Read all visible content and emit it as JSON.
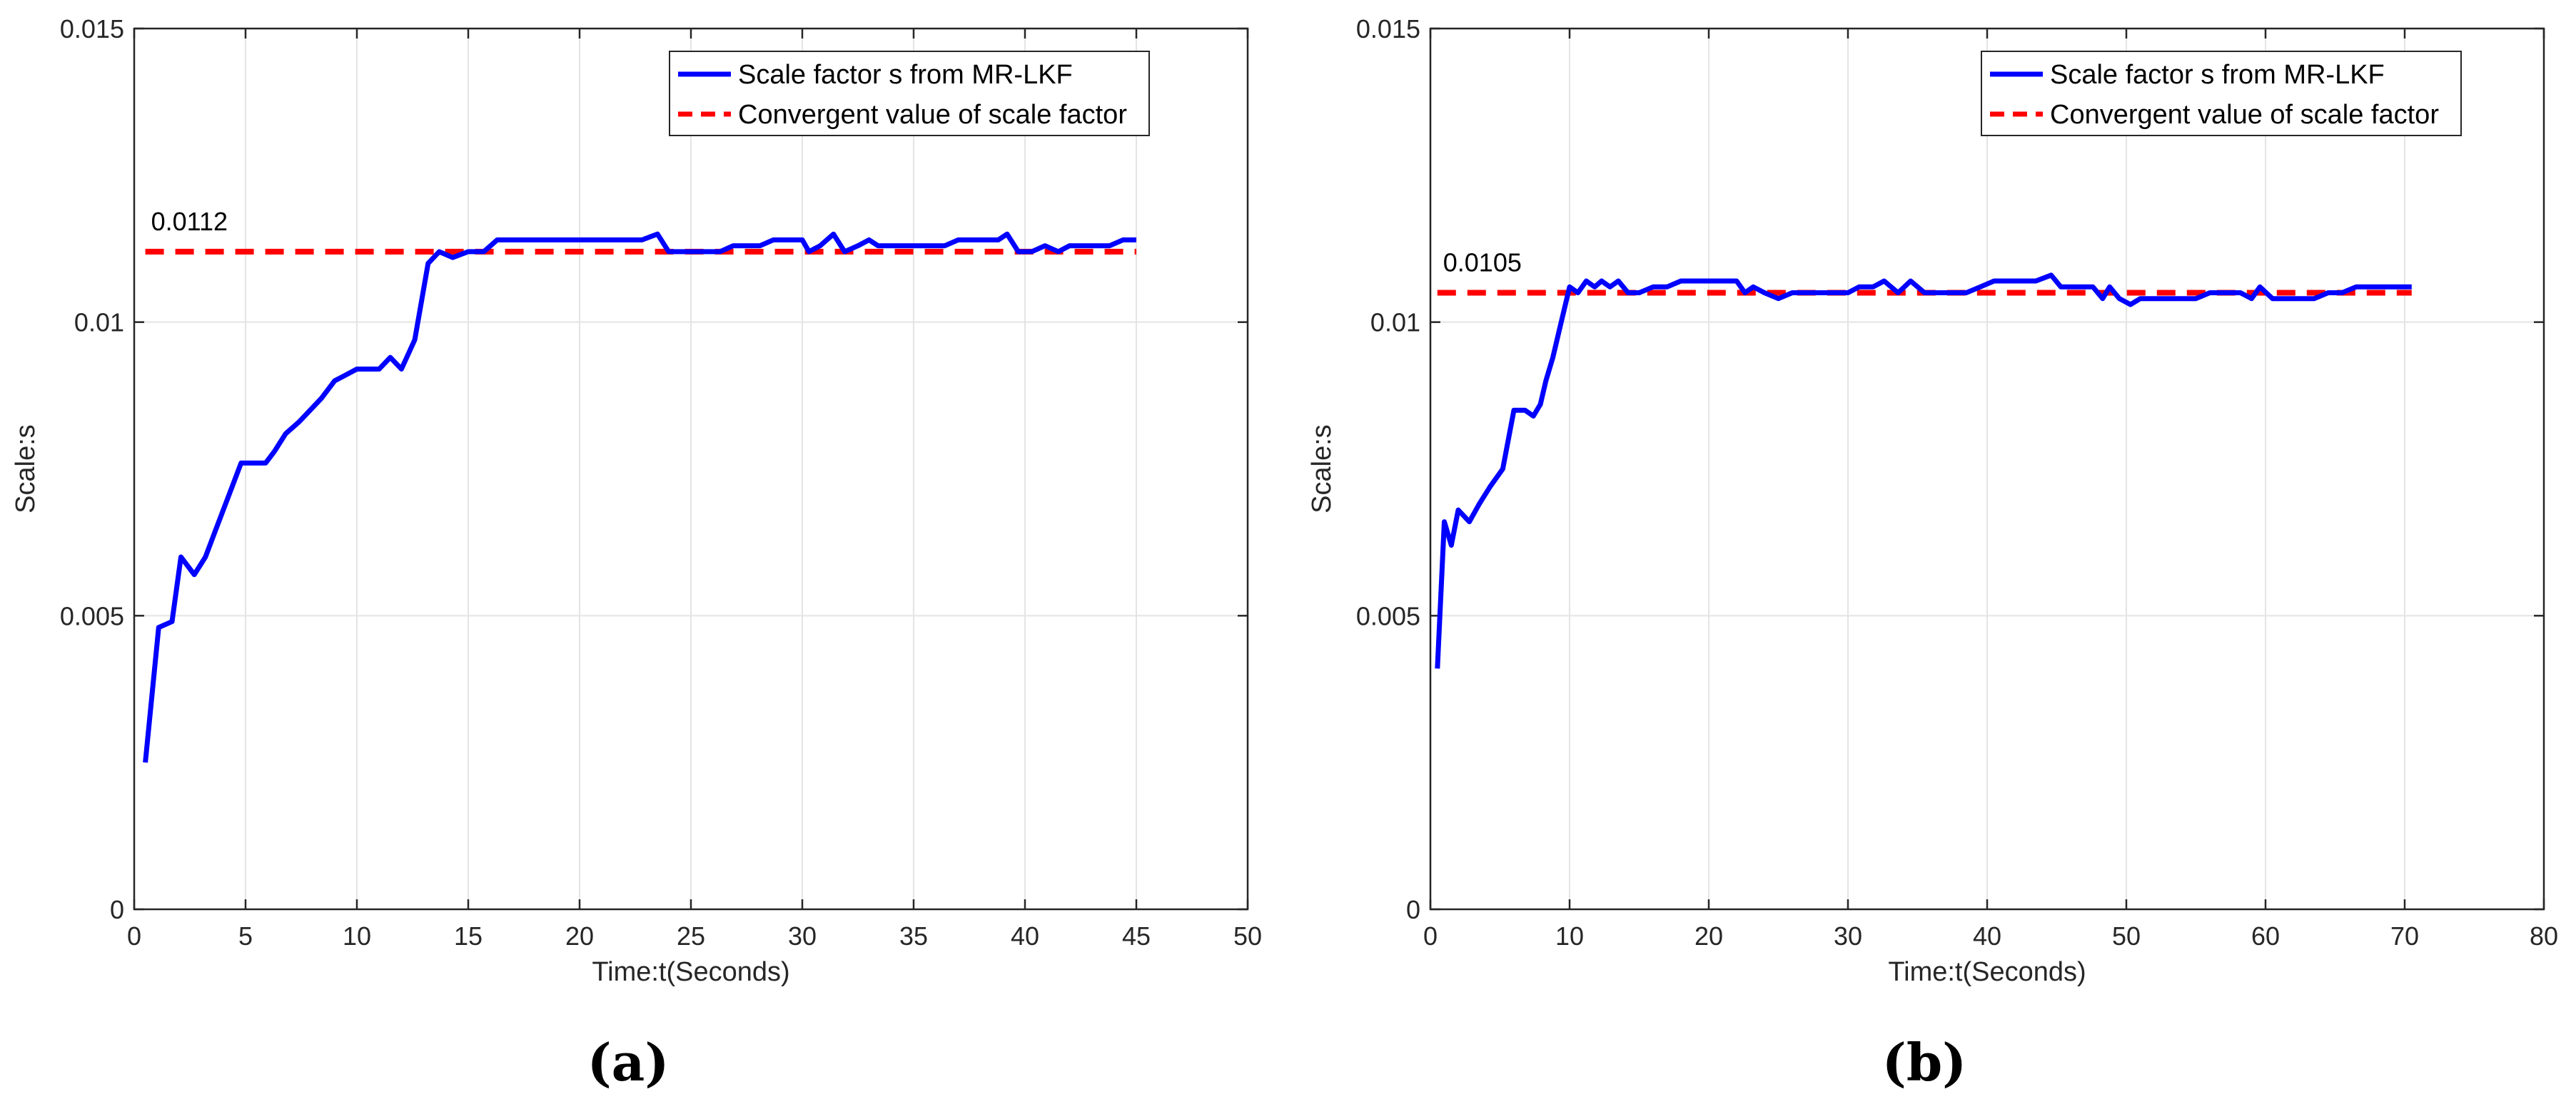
{
  "chart_data": [
    {
      "type": "line",
      "caption": "(a)",
      "xlabel": "Time:t(Seconds)",
      "ylabel": "Scale:s",
      "xlim": [
        0,
        50
      ],
      "ylim": [
        0,
        0.015
      ],
      "xticks": [
        "0",
        "5",
        "10",
        "15",
        "20",
        "25",
        "30",
        "35",
        "40",
        "45",
        "50"
      ],
      "yticks": [
        "0",
        "0.005",
        "0.01",
        "0.015"
      ],
      "grid": true,
      "legend_position": "top-right",
      "annotation": "0.0112",
      "series": [
        {
          "name": "Scale factor s from MR-LKF",
          "color": "#0000ff",
          "style": "solid",
          "x": [
            0.5,
            1.1,
            1.7,
            2.1,
            2.7,
            3.2,
            3.7,
            4.3,
            4.8,
            5.3,
            5.9,
            6.3,
            6.8,
            7.4,
            7.9,
            8.4,
            9.0,
            9.5,
            10.0,
            10.5,
            11.0,
            11.5,
            12.0,
            12.6,
            13.2,
            13.7,
            14.3,
            15.0,
            15.7,
            16.3,
            16.9,
            17.5,
            18.3,
            19.0,
            19.8,
            20.5,
            21.3,
            22.0,
            22.8,
            23.5,
            24.0,
            24.6,
            25.1,
            25.7,
            26.3,
            26.9,
            27.5,
            28.1,
            28.7,
            29.4,
            30.0,
            30.3,
            30.8,
            31.4,
            31.9,
            32.5,
            33.0,
            33.4,
            34.0,
            34.6,
            35.2,
            35.8,
            36.4,
            37.0,
            37.6,
            38.2,
            38.8,
            39.2,
            39.7,
            40.3,
            40.9,
            41.5,
            42.0,
            42.6,
            43.2,
            43.8,
            44.4,
            45.0
          ],
          "y": [
            0.0025,
            0.0048,
            0.0049,
            0.006,
            0.0057,
            0.006,
            0.0065,
            0.0071,
            0.0076,
            0.0076,
            0.0076,
            0.0078,
            0.0081,
            0.0083,
            0.0085,
            0.0087,
            0.009,
            0.0091,
            0.0092,
            0.0092,
            0.0092,
            0.0094,
            0.0092,
            0.0097,
            0.011,
            0.0112,
            0.0111,
            0.0112,
            0.0112,
            0.0114,
            0.0114,
            0.0114,
            0.0114,
            0.0114,
            0.0114,
            0.0114,
            0.0114,
            0.0114,
            0.0114,
            0.0115,
            0.0112,
            0.0112,
            0.0112,
            0.0112,
            0.0112,
            0.0113,
            0.0113,
            0.0113,
            0.0114,
            0.0114,
            0.0114,
            0.0112,
            0.0113,
            0.0115,
            0.0112,
            0.0113,
            0.0114,
            0.0113,
            0.0113,
            0.0113,
            0.0113,
            0.0113,
            0.0113,
            0.0114,
            0.0114,
            0.0114,
            0.0114,
            0.0115,
            0.0112,
            0.0112,
            0.0113,
            0.0112,
            0.0113,
            0.0113,
            0.0113,
            0.0113,
            0.0114,
            0.0114
          ]
        },
        {
          "name": "Convergent value of scale factor",
          "color": "#ff0000",
          "style": "dashed",
          "x": [
            0.5,
            45.0
          ],
          "y": [
            0.0112,
            0.0112
          ]
        }
      ]
    },
    {
      "type": "line",
      "caption": "(b)",
      "xlabel": "Time:t(Seconds)",
      "ylabel": "Scale:s",
      "xlim": [
        0,
        80
      ],
      "ylim": [
        0,
        0.015
      ],
      "xticks": [
        "0",
        "10",
        "20",
        "30",
        "40",
        "50",
        "60",
        "70",
        "80"
      ],
      "yticks": [
        "0",
        "0.005",
        "0.01",
        "0.015"
      ],
      "grid": true,
      "legend_position": "top-right",
      "annotation": "0.0105",
      "series": [
        {
          "name": "Scale factor s from MR-LKF",
          "color": "#0000ff",
          "style": "solid",
          "x": [
            0.5,
            1.0,
            1.5,
            2.0,
            2.8,
            3.5,
            4.3,
            5.2,
            6.0,
            6.8,
            7.4,
            7.9,
            8.3,
            8.8,
            9.3,
            10.0,
            10.6,
            11.2,
            11.8,
            12.3,
            12.9,
            13.5,
            14.2,
            15.0,
            16.0,
            17.0,
            18.0,
            19.0,
            20.0,
            21.0,
            22.0,
            22.6,
            23.2,
            24.0,
            25.0,
            26.0,
            27.0,
            28.0,
            29.0,
            30.0,
            30.8,
            31.8,
            32.6,
            33.6,
            34.5,
            35.5,
            36.5,
            37.5,
            38.5,
            39.5,
            40.5,
            41.5,
            42.5,
            43.5,
            44.6,
            45.3,
            46.0,
            46.8,
            47.6,
            48.3,
            48.8,
            49.5,
            50.3,
            51.0,
            52.0,
            53.0,
            54.0,
            55.0,
            56.0,
            57.0,
            57.6,
            58.2,
            59.0,
            59.6,
            60.5,
            61.5,
            62.5,
            63.5,
            64.5,
            65.5,
            66.5,
            67.5,
            68.5,
            69.5,
            70.5
          ],
          "y": [
            0.0041,
            0.0066,
            0.0062,
            0.0068,
            0.0066,
            0.0069,
            0.0072,
            0.0075,
            0.0085,
            0.0085,
            0.0084,
            0.0086,
            0.009,
            0.0094,
            0.0099,
            0.0106,
            0.0105,
            0.0107,
            0.0106,
            0.0107,
            0.0106,
            0.0107,
            0.0105,
            0.0105,
            0.0106,
            0.0106,
            0.0107,
            0.0107,
            0.0107,
            0.0107,
            0.0107,
            0.0105,
            0.0106,
            0.0105,
            0.0104,
            0.0105,
            0.0105,
            0.0105,
            0.0105,
            0.0105,
            0.0106,
            0.0106,
            0.0107,
            0.0105,
            0.0107,
            0.0105,
            0.0105,
            0.0105,
            0.0105,
            0.0106,
            0.0107,
            0.0107,
            0.0107,
            0.0107,
            0.0108,
            0.0106,
            0.0106,
            0.0106,
            0.0106,
            0.0104,
            0.0106,
            0.0104,
            0.0103,
            0.0104,
            0.0104,
            0.0104,
            0.0104,
            0.0104,
            0.0105,
            0.0105,
            0.0105,
            0.0105,
            0.0104,
            0.0106,
            0.0104,
            0.0104,
            0.0104,
            0.0104,
            0.0105,
            0.0105,
            0.0106,
            0.0106,
            0.0106,
            0.0106,
            0.0106
          ]
        },
        {
          "name": "Convergent value of scale factor",
          "color": "#ff0000",
          "style": "dashed",
          "x": [
            0.5,
            70.5
          ],
          "y": [
            0.0105,
            0.0105
          ]
        }
      ]
    }
  ]
}
